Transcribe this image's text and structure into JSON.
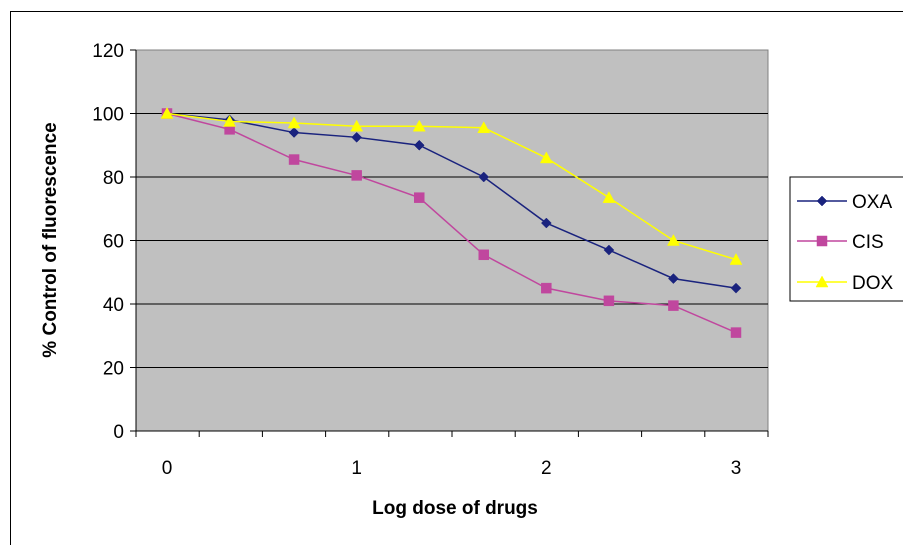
{
  "chart_data": {
    "type": "line",
    "title": "",
    "xlabel": "Log dose of drugs",
    "ylabel": "% Control of fluorescence",
    "xlim": [
      0,
      3
    ],
    "ylim": [
      0,
      120
    ],
    "x_ticks": [
      "0",
      "1",
      "2",
      "3"
    ],
    "y_ticks": [
      "0",
      "20",
      "40",
      "60",
      "80",
      "100",
      "120"
    ],
    "grid": "horizontal",
    "plot_background": "#c0c0c0",
    "legend_position": "right",
    "x_values": [
      0,
      0.33,
      0.67,
      1.0,
      1.33,
      1.67,
      2.0,
      2.33,
      2.67,
      3.0
    ],
    "series": [
      {
        "name": "OXA",
        "color": "#1a237e",
        "marker": "diamond",
        "values": [
          100,
          98,
          94,
          92.5,
          90,
          80,
          65.5,
          57,
          48,
          45
        ]
      },
      {
        "name": "CIS",
        "color": "#c0479e",
        "marker": "square",
        "values": [
          100,
          95,
          85.5,
          80.5,
          73.5,
          55.5,
          45,
          41,
          39.5,
          31
        ]
      },
      {
        "name": "DOX",
        "color": "#ffff00",
        "marker": "triangle",
        "values": [
          100,
          97.5,
          97,
          96,
          96,
          95.5,
          86,
          73.5,
          60,
          54
        ]
      }
    ]
  }
}
